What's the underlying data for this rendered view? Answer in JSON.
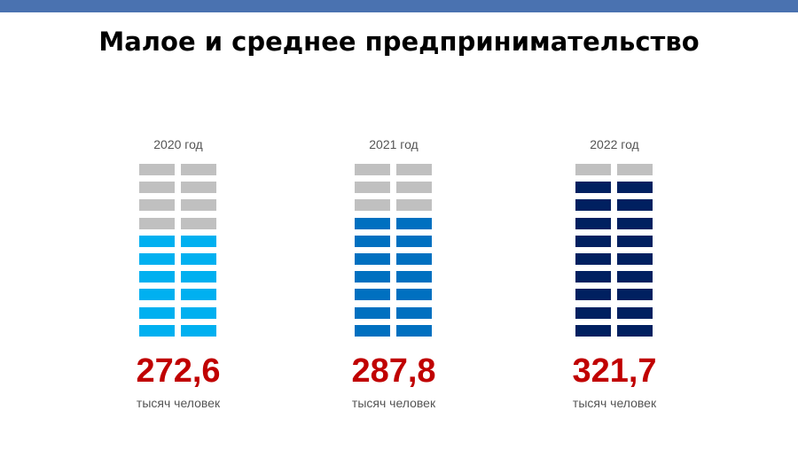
{
  "title": "Малое и среднее предпринимательство",
  "chart_data": {
    "type": "pictogram",
    "title": "Малое и среднее предпринимательство",
    "icons_per_column": 20,
    "unit": "тысяч человек",
    "empty_color": "#c0c0c0",
    "series": [
      {
        "label": "2020 год",
        "value": 272.6,
        "value_label": "272,6",
        "unit": "тысяч человек",
        "filled_icons": 12,
        "color": "#00b0f0"
      },
      {
        "label": "2021 год",
        "value": 287.8,
        "value_label": "287,8",
        "unit": "тысяч человек",
        "filled_icons": 14,
        "color": "#0070c0"
      },
      {
        "label": "2022 год",
        "value": 321.7,
        "value_label": "321,7",
        "unit": "тысяч человек",
        "filled_icons": 18,
        "color": "#002060"
      }
    ]
  }
}
